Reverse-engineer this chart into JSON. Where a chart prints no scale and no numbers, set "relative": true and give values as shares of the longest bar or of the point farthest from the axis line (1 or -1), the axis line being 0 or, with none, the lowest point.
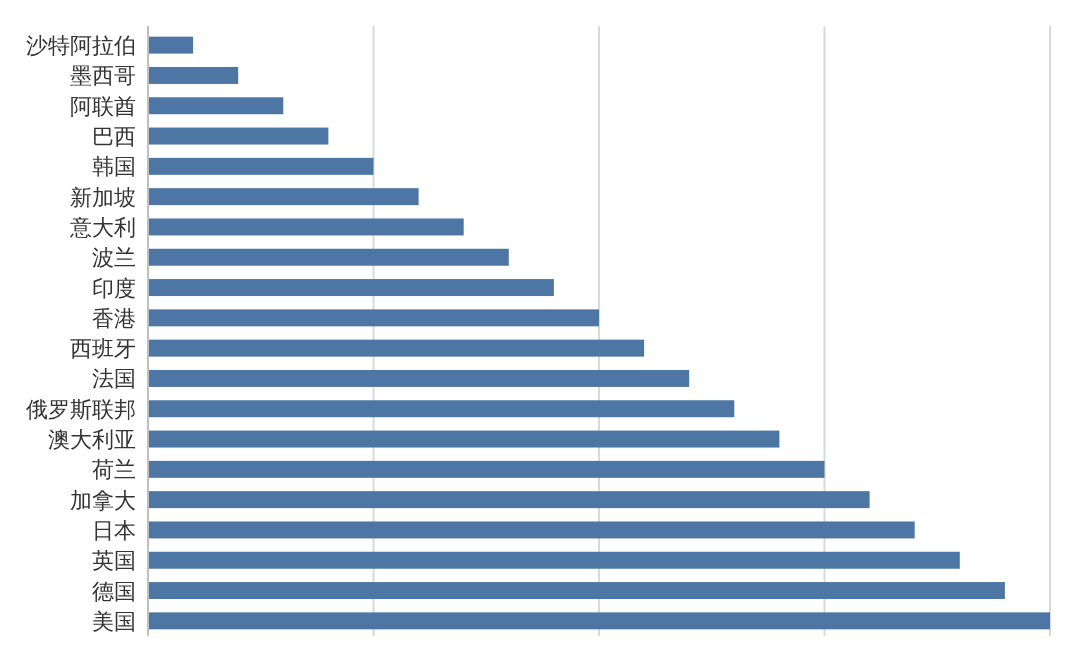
{
  "chart_data": {
    "type": "bar",
    "orientation": "horizontal",
    "relative": true,
    "grid": "x",
    "categories": [
      "沙特阿拉伯",
      "墨西哥",
      "阿联酋",
      "巴西",
      "韩国",
      "新加坡",
      "意大利",
      "波兰",
      "印度",
      "香港",
      "西班牙",
      "法国",
      "俄罗斯联邦",
      "澳大利亚",
      "荷兰",
      "加拿大",
      "日本",
      "英国",
      "德国",
      "美国"
    ],
    "values": [
      0.05,
      0.1,
      0.15,
      0.2,
      0.25,
      0.3,
      0.35,
      0.4,
      0.45,
      0.5,
      0.55,
      0.6,
      0.65,
      0.7,
      0.75,
      0.8,
      0.85,
      0.9,
      0.95,
      1
    ],
    "color": "#4e76a4"
  }
}
